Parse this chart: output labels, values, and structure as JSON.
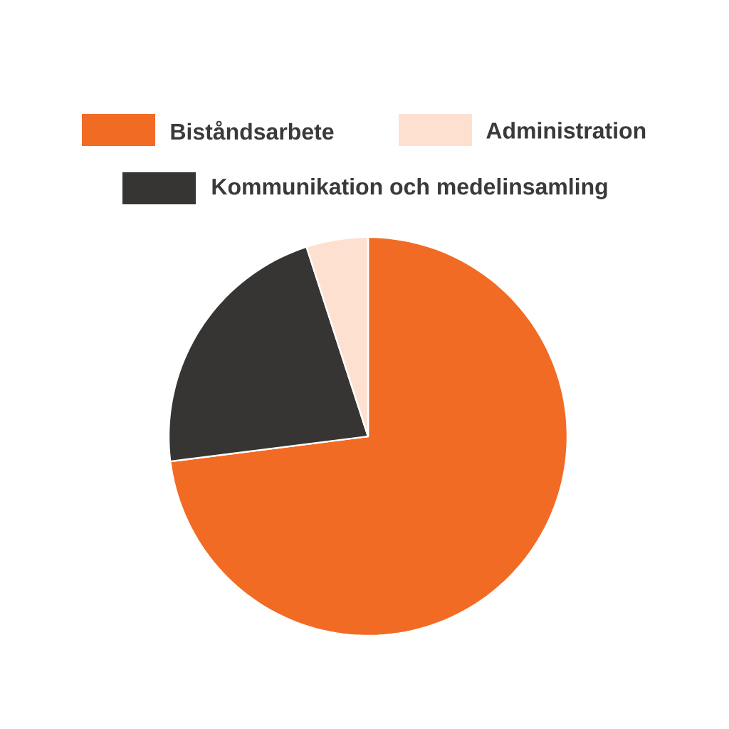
{
  "chart_data": {
    "type": "pie",
    "categories": [
      "Biståndsarbete",
      "Kommunikation och medelinsamling",
      "Administration"
    ],
    "values": [
      73,
      22,
      5
    ],
    "colors": [
      "#f26b24",
      "#363533",
      "#fde0cf"
    ],
    "legend": "top"
  }
}
